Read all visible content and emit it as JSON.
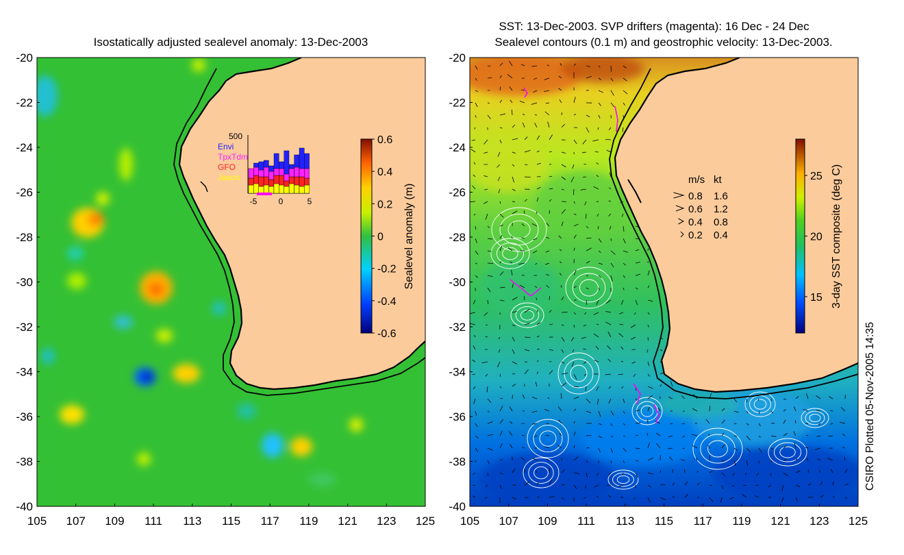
{
  "left_panel": {
    "title": "Isostatically adjusted sealevel anomaly: 13-Dec-2003",
    "lon_ticks": [
      "105",
      "107",
      "109",
      "111",
      "113",
      "115",
      "117",
      "119",
      "121",
      "123",
      "125"
    ],
    "lat_ticks": [
      "-20",
      "-22",
      "-24",
      "-26",
      "-28",
      "-30",
      "-32",
      "-34",
      "-36",
      "-38",
      "-40"
    ],
    "colorbar": {
      "label": "Sealevel anomaly (m)",
      "ticks": [
        "0.6",
        "0.4",
        "0.2",
        "0",
        "-0.2",
        "-0.4",
        "-0.6"
      ],
      "range": [
        -0.6,
        0.6
      ]
    },
    "inset": {
      "ymax_label": "500",
      "xticks": [
        "-5",
        "0",
        "5"
      ],
      "satellites": [
        {
          "name": "Envi",
          "color": "#2222ff"
        },
        {
          "name": "TpxTdm",
          "color": "#ff22ff"
        },
        {
          "name": "GFO",
          "color": "#ff2222"
        },
        {
          "name": "Jason",
          "color": "#ffff00"
        }
      ]
    }
  },
  "right_panel": {
    "title_line1": "SST: 13-Dec-2003. SVP drifters (magenta): 16 Dec - 24 Dec",
    "title_line2": "Sealevel contours (0.1 m) and geostrophic velocity: 13-Dec-2003.",
    "lon_ticks": [
      "105",
      "107",
      "109",
      "111",
      "113",
      "115",
      "117",
      "119",
      "121",
      "123",
      "125"
    ],
    "lat_ticks": [
      "-20",
      "-22",
      "-24",
      "-26",
      "-28",
      "-30",
      "-32",
      "-34",
      "-36",
      "-38",
      "-40"
    ],
    "colorbar": {
      "label": "3-day SST composite (deg C)",
      "ticks": [
        "25",
        "20",
        "15"
      ],
      "range": [
        12,
        28
      ]
    },
    "velocity_legend": {
      "unit_ms": "m/s",
      "unit_kt": "kt",
      "rows": [
        {
          "ms": "0.8",
          "kt": "1.6"
        },
        {
          "ms": "0.6",
          "kt": "1.2"
        },
        {
          "ms": "0.4",
          "kt": "0.8"
        },
        {
          "ms": "0.2",
          "kt": "0.4"
        }
      ]
    }
  },
  "credit": "CSIRO Plotted 05-Nov-2005 14:35",
  "colors": {
    "land": "#fbcb9c",
    "ocean_base": "#2fbf2f",
    "coastline": "#000000",
    "contour": "#ffffff",
    "drifter": "#ff00ff"
  }
}
